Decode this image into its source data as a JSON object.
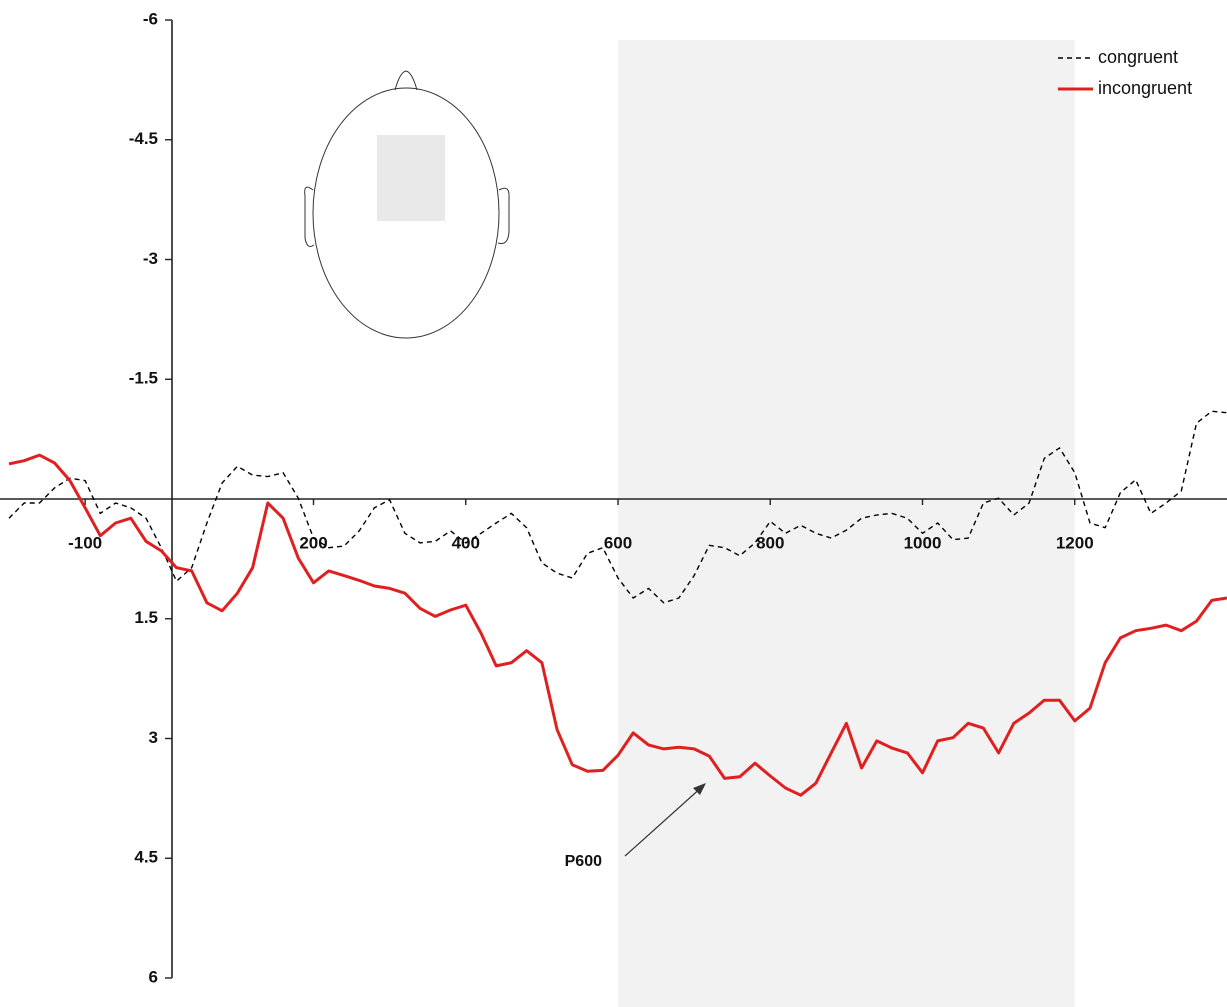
{
  "chart_data": {
    "type": "line",
    "x": [
      -200,
      -180,
      -160,
      -140,
      -120,
      -100,
      -80,
      -60,
      -40,
      -20,
      0,
      20,
      40,
      60,
      80,
      100,
      120,
      140,
      160,
      180,
      200,
      220,
      240,
      260,
      280,
      300,
      320,
      340,
      360,
      380,
      400,
      420,
      440,
      460,
      480,
      500,
      520,
      540,
      560,
      580,
      600,
      620,
      640,
      660,
      680,
      700,
      720,
      740,
      760,
      780,
      800,
      820,
      840,
      860,
      880,
      900,
      920,
      940,
      960,
      980,
      1000,
      1020,
      1040,
      1060,
      1080,
      1100,
      1120,
      1140,
      1160,
      1180,
      1200,
      1220,
      1240,
      1260,
      1280,
      1300,
      1320,
      1340,
      1360,
      1380,
      1400
    ],
    "series": [
      {
        "name": "congruent",
        "color": "#000000",
        "dash": true,
        "values": [
          0.24,
          0.05,
          0.05,
          -0.14,
          -0.26,
          -0.23,
          0.18,
          0.05,
          0.11,
          0.24,
          0.61,
          1.03,
          0.86,
          0.3,
          -0.2,
          -0.41,
          -0.3,
          -0.28,
          -0.33,
          -0.01,
          0.49,
          0.61,
          0.59,
          0.4,
          0.11,
          0.01,
          0.43,
          0.55,
          0.53,
          0.4,
          0.55,
          0.43,
          0.3,
          0.18,
          0.36,
          0.8,
          0.93,
          0.99,
          0.68,
          0.61,
          0.99,
          1.24,
          1.12,
          1.3,
          1.24,
          0.96,
          0.58,
          0.61,
          0.71,
          0.55,
          0.28,
          0.43,
          0.33,
          0.43,
          0.49,
          0.39,
          0.24,
          0.2,
          0.18,
          0.24,
          0.43,
          0.3,
          0.51,
          0.49,
          0.05,
          -0.01,
          0.2,
          0.05,
          -0.51,
          -0.64,
          -0.33,
          0.3,
          0.36,
          -0.08,
          -0.24,
          0.18,
          0.05,
          -0.1,
          -0.95,
          -1.1,
          -1.08
        ]
      },
      {
        "name": "incongruent",
        "color": "#e02020",
        "dash": false,
        "values": [
          -0.44,
          -0.48,
          -0.55,
          -0.45,
          -0.23,
          0.11,
          0.46,
          0.3,
          0.24,
          0.53,
          0.65,
          0.86,
          0.9,
          1.3,
          1.4,
          1.18,
          0.86,
          0.05,
          0.24,
          0.74,
          1.05,
          0.9,
          0.96,
          1.02,
          1.09,
          1.12,
          1.18,
          1.37,
          1.47,
          1.39,
          1.33,
          1.68,
          2.09,
          2.05,
          1.9,
          2.05,
          2.89,
          3.33,
          3.41,
          3.4,
          3.21,
          2.93,
          3.08,
          3.13,
          3.11,
          3.13,
          3.22,
          3.5,
          3.48,
          3.31,
          3.47,
          3.62,
          3.71,
          3.56,
          3.18,
          2.81,
          3.37,
          3.03,
          3.12,
          3.18,
          3.43,
          3.03,
          2.99,
          2.81,
          2.87,
          3.18,
          2.81,
          2.68,
          2.52,
          2.52,
          2.78,
          2.62,
          2.05,
          1.74,
          1.65,
          1.62,
          1.58,
          1.65,
          1.53,
          1.27,
          1.24
        ]
      }
    ],
    "xlim": [
      -200,
      1400
    ],
    "xticks": [
      -100,
      200,
      400,
      600,
      800,
      1000,
      1200
    ],
    "ylim": [
      -6,
      6
    ],
    "y_inverted": true,
    "yticks": [
      -6,
      -4.5,
      -3,
      -1.5,
      1.5,
      3,
      4.5,
      6
    ],
    "highlight_range": [
      600,
      1200
    ],
    "annotation": "P600",
    "legend_position": "top-right"
  }
}
